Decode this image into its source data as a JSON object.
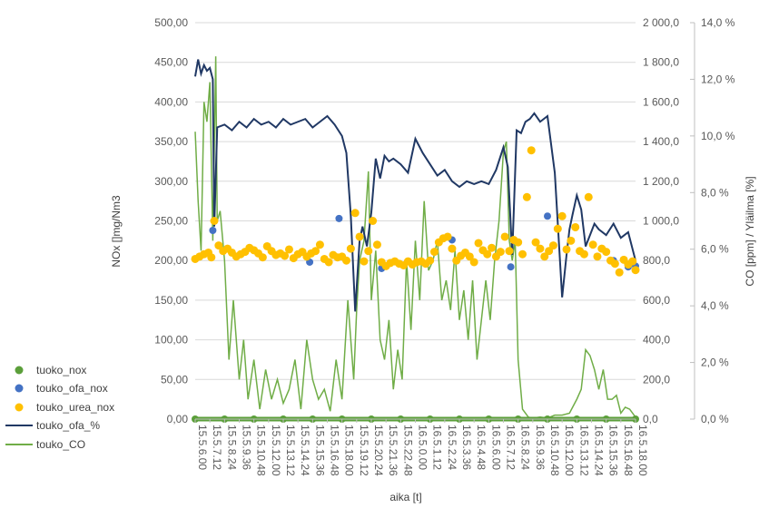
{
  "chart_data": {
    "type": "line",
    "xlabel": "aika [t]",
    "ylabel_left": "NOx []mg/Nm3",
    "ylabel_right_primary": "CO [ppm] / Yläilma [%]",
    "ylim_left": [
      0,
      500
    ],
    "ylim_right_primary": [
      0,
      2000
    ],
    "ylim_right_secondary": [
      0,
      14
    ],
    "yticks_left": [
      "0,00",
      "50,00",
      "100,00",
      "150,00",
      "200,00",
      "250,00",
      "300,00",
      "350,00",
      "400,00",
      "450,00",
      "500,00"
    ],
    "yticks_right_primary": [
      "0,0",
      "200,0",
      "400,0",
      "600,0",
      "800,0",
      "1 000,0",
      "1 200,0",
      "1 400,0",
      "1 600,0",
      "1 800,0",
      "2 000,0"
    ],
    "yticks_right_secondary": [
      "0,0 %",
      "2,0 %",
      "4,0 %",
      "6,0 %",
      "8,0 %",
      "10,0 %",
      "12,0 %",
      "14,0 %"
    ],
    "x_tick_labels": [
      "15.5.6.00",
      "15.5.7.12",
      "15.5.8.24",
      "15.5.9.36",
      "15.5.10.48",
      "15.5.12.00",
      "15.5.13.12",
      "15.5.14.24",
      "15.5.15.36",
      "15.5.16.48",
      "15.5.18.00",
      "15.5.19.12",
      "15.5.20.24",
      "15.5.21.36",
      "15.5.22.48",
      "16.5.0.00",
      "16.5.1.12",
      "16.5.2.24",
      "16.5.3.36",
      "16.5.4.48",
      "16.5.6.00",
      "16.5.7.12",
      "16.5.8.24",
      "16.5.9.36",
      "16.5.10.48",
      "16.5.12.00",
      "16.5.13.12",
      "16.5.14.24",
      "16.5.15.36",
      "16.5.16.48",
      "16.5.18.00"
    ],
    "grid": true,
    "legend_position": "left",
    "series": [
      {
        "name": "tuoko_nox",
        "type": "scatter",
        "axis": "left",
        "color": "#5b9f3a",
        "x": [
          0,
          2,
          4,
          6,
          8,
          10,
          12,
          14,
          16,
          18,
          20,
          22,
          24,
          26,
          28,
          30
        ],
        "values": [
          0,
          0,
          0,
          0,
          0,
          0,
          0,
          0,
          0,
          0,
          0,
          0,
          0,
          0,
          0,
          0
        ]
      },
      {
        "name": "touko_ofa_nox",
        "type": "scatter",
        "axis": "left",
        "color": "#4472c4",
        "x": [
          1.2,
          7.8,
          9.8,
          12.7,
          17.5,
          21.5,
          24.0,
          28.5,
          29.5,
          30.0
        ],
        "values": [
          238,
          198,
          253,
          190,
          226,
          192,
          256,
          200,
          192,
          193
        ]
      },
      {
        "name": "touko_urea_nox",
        "type": "scatter",
        "axis": "left",
        "color": "#ffc000",
        "x": [
          0.0,
          0.3,
          0.6,
          0.9,
          1.1,
          1.3,
          1.6,
          1.9,
          2.2,
          2.5,
          2.8,
          3.1,
          3.4,
          3.7,
          4.0,
          4.3,
          4.6,
          4.9,
          5.2,
          5.5,
          5.8,
          6.1,
          6.4,
          6.7,
          7.0,
          7.3,
          7.6,
          7.9,
          8.2,
          8.5,
          8.8,
          9.1,
          9.4,
          9.7,
          10.0,
          10.3,
          10.6,
          10.9,
          11.2,
          11.5,
          11.8,
          12.1,
          12.4,
          12.7,
          13.0,
          13.3,
          13.6,
          13.9,
          14.2,
          14.5,
          14.8,
          15.1,
          15.4,
          15.7,
          16.0,
          16.3,
          16.6,
          16.9,
          17.2,
          17.5,
          17.8,
          18.1,
          18.4,
          18.7,
          19.0,
          19.3,
          19.6,
          19.9,
          20.2,
          20.5,
          20.8,
          21.1,
          21.4,
          21.7,
          22.0,
          22.3,
          22.6,
          22.9,
          23.2,
          23.5,
          23.8,
          24.1,
          24.4,
          24.7,
          25.0,
          25.3,
          25.6,
          25.9,
          26.2,
          26.5,
          26.8,
          27.1,
          27.4,
          27.7,
          28.0,
          28.3,
          28.6,
          28.9,
          29.2,
          29.5,
          29.8,
          30.0
        ],
        "values": [
          202,
          205,
          208,
          210,
          204,
          250,
          219,
          212,
          215,
          210,
          205,
          208,
          211,
          216,
          213,
          209,
          204,
          218,
          212,
          207,
          209,
          206,
          214,
          203,
          208,
          211,
          205,
          209,
          212,
          220,
          202,
          198,
          207,
          204,
          205,
          200,
          215,
          260,
          230,
          199,
          212,
          250,
          220,
          198,
          193,
          197,
          199,
          196,
          194,
          199,
          195,
          198,
          199,
          196,
          200,
          211,
          223,
          228,
          230,
          215,
          200,
          206,
          210,
          205,
          198,
          222,
          213,
          208,
          216,
          205,
          211,
          230,
          212,
          226,
          223,
          208,
          280,
          339,
          223,
          215,
          205,
          212,
          219,
          240,
          256,
          214,
          225,
          242,
          212,
          208,
          280,
          220,
          205,
          215,
          211,
          200,
          196,
          185,
          201,
          195,
          199,
          188
        ]
      },
      {
        "name": "touko_ofa_%",
        "type": "line",
        "axis": "right_secondary",
        "color": "#203864",
        "x": [
          0,
          0.2,
          0.4,
          0.6,
          0.8,
          1.0,
          1.2,
          1.3,
          1.5,
          2.0,
          2.5,
          3.0,
          3.5,
          4.0,
          4.5,
          5.0,
          5.5,
          6.0,
          6.5,
          7.0,
          7.5,
          8.0,
          8.5,
          9.0,
          9.5,
          10.0,
          10.3,
          10.6,
          10.9,
          11.2,
          11.4,
          11.7,
          12.0,
          12.3,
          12.6,
          12.9,
          13.2,
          13.5,
          14.0,
          14.5,
          15.0,
          15.5,
          16.0,
          16.5,
          17.0,
          17.5,
          18.0,
          18.5,
          19.0,
          19.5,
          20.0,
          20.5,
          21.0,
          21.3,
          21.6,
          21.9,
          22.2,
          22.5,
          22.8,
          23.1,
          23.5,
          24.0,
          24.5,
          25.0,
          25.3,
          25.5,
          25.7,
          26.0,
          26.3,
          26.6,
          26.9,
          27.2,
          27.5,
          28.0,
          28.5,
          29.0,
          29.5,
          30.0
        ],
        "values": [
          12.1,
          12.7,
          12.2,
          12.5,
          12.3,
          12.4,
          12.0,
          6.8,
          10.3,
          10.4,
          10.2,
          10.5,
          10.3,
          10.6,
          10.4,
          10.5,
          10.3,
          10.6,
          10.4,
          10.5,
          10.6,
          10.3,
          10.5,
          10.7,
          10.4,
          10.0,
          9.4,
          7.2,
          3.8,
          6.3,
          6.8,
          6.1,
          7.3,
          9.2,
          8.5,
          9.3,
          9.1,
          9.2,
          9.0,
          8.7,
          9.9,
          9.4,
          9.0,
          8.6,
          8.8,
          8.4,
          8.2,
          8.4,
          8.3,
          8.4,
          8.3,
          8.8,
          9.6,
          8.9,
          5.8,
          10.2,
          10.1,
          10.5,
          10.6,
          10.8,
          10.5,
          10.7,
          8.7,
          4.3,
          5.8,
          6.7,
          7.2,
          7.9,
          7.4,
          6.1,
          6.5,
          6.9,
          6.7,
          6.5,
          6.9,
          6.4,
          6.6,
          5.6
        ]
      },
      {
        "name": "touko_CO",
        "type": "line",
        "axis": "right_primary",
        "color": "#70ad47",
        "x": [
          0,
          0.2,
          0.4,
          0.6,
          0.8,
          1.0,
          1.2,
          1.4,
          1.5,
          1.7,
          2.0,
          2.3,
          2.6,
          3.0,
          3.3,
          3.6,
          4.0,
          4.4,
          4.8,
          5.2,
          5.6,
          6.0,
          6.4,
          6.8,
          7.2,
          7.6,
          8.0,
          8.4,
          8.8,
          9.2,
          9.6,
          10.0,
          10.4,
          10.8,
          11.0,
          11.2,
          11.5,
          11.8,
          12.0,
          12.3,
          12.6,
          12.9,
          13.2,
          13.5,
          13.8,
          14.1,
          14.4,
          14.7,
          15.0,
          15.3,
          15.6,
          15.9,
          16.2,
          16.5,
          16.8,
          17.1,
          17.4,
          17.7,
          18.0,
          18.3,
          18.6,
          18.9,
          19.2,
          19.5,
          19.8,
          20.1,
          20.4,
          20.7,
          21.0,
          21.2,
          21.4,
          21.6,
          21.8,
          22.0,
          22.3,
          22.7,
          23.0,
          23.5,
          24.0,
          24.5,
          25.0,
          25.5,
          26.0,
          26.3,
          26.6,
          26.9,
          27.2,
          27.5,
          27.8,
          28.1,
          28.4,
          28.7,
          29.0,
          29.3,
          29.6,
          30.0
        ],
        "values": [
          1450,
          1100,
          850,
          1600,
          1500,
          1700,
          900,
          1830,
          1000,
          1050,
          800,
          300,
          600,
          200,
          400,
          100,
          300,
          50,
          250,
          100,
          200,
          80,
          150,
          300,
          50,
          400,
          200,
          100,
          150,
          40,
          300,
          100,
          600,
          200,
          550,
          800,
          900,
          1250,
          600,
          850,
          400,
          300,
          500,
          150,
          350,
          200,
          800,
          450,
          900,
          600,
          1100,
          750,
          800,
          900,
          600,
          700,
          550,
          850,
          500,
          650,
          400,
          700,
          300,
          500,
          700,
          500,
          800,
          1000,
          1350,
          1400,
          900,
          800,
          900,
          300,
          50,
          10,
          5,
          10,
          5,
          20,
          20,
          30,
          100,
          150,
          350,
          320,
          250,
          150,
          250,
          100,
          100,
          120,
          30,
          60,
          50,
          10
        ]
      }
    ]
  }
}
